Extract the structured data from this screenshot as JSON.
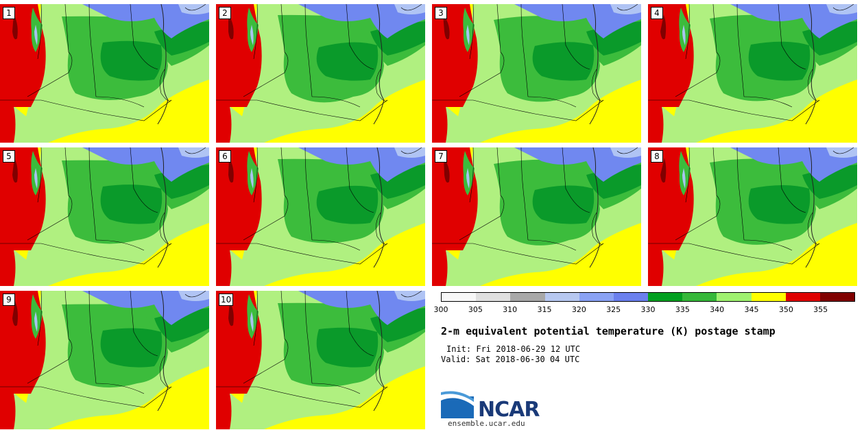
{
  "title": "2-m equivalent potential temperature (K) postage stamp",
  "init": "Init: Fri 2018-06-29 12 UTC",
  "valid": "Valid: Sat 2018-06-30 04 UTC",
  "logo_text": "NCAR",
  "site": "ensemble.ucar.edu",
  "panels": [
    "1",
    "2",
    "3",
    "4",
    "5",
    "6",
    "7",
    "8",
    "9",
    "10"
  ],
  "colorbar": {
    "ticks": [
      "300",
      "305",
      "310",
      "315",
      "320",
      "325",
      "330",
      "335",
      "340",
      "345",
      "350",
      "355"
    ],
    "colors": [
      "#f7f7f7",
      "#e0e0e0",
      "#a8a8a8",
      "#b7c8f0",
      "#8aa2f4",
      "#6b80ee",
      "#00a020",
      "#36b83a",
      "#9ff270",
      "#ffff00",
      "#e00000",
      "#800000"
    ]
  },
  "map_colors": {
    "yellow": "#ffff00",
    "light_green": "#b0f080",
    "mid_green": "#3cbc3c",
    "dark_green": "#0a9a2a",
    "blue": "#7088f0",
    "light_blue": "#b0c4f4",
    "red": "#e00000",
    "dark_red": "#800000",
    "lake": "#a8c4f0"
  }
}
